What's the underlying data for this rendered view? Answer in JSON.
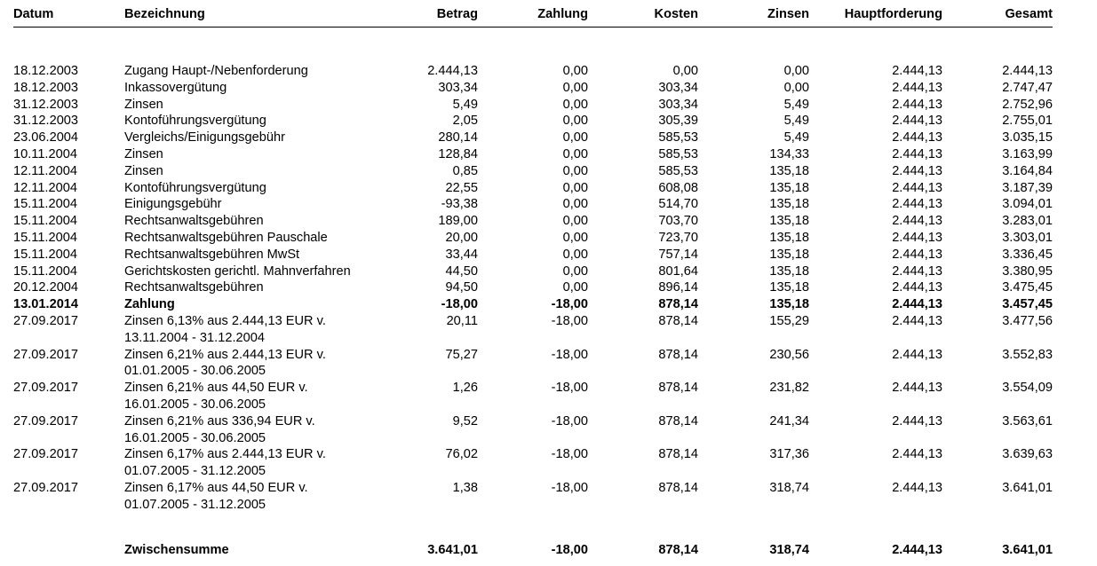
{
  "columns": {
    "datum": "Datum",
    "bezeichnung": "Bezeichnung",
    "betrag": "Betrag",
    "zahlung": "Zahlung",
    "kosten": "Kosten",
    "zinsen": "Zinsen",
    "hauptforderung": "Hauptforderung",
    "gesamt": "Gesamt"
  },
  "rows": [
    {
      "datum": "18.12.2003",
      "bezeichnung": [
        "Zugang Haupt-/Nebenforderung"
      ],
      "betrag": "2.444,13",
      "zahlung": "0,00",
      "kosten": "0,00",
      "zinsen": "0,00",
      "hauptforderung": "2.444,13",
      "gesamt": "2.444,13",
      "bold": false
    },
    {
      "datum": "18.12.2003",
      "bezeichnung": [
        "Inkassovergütung"
      ],
      "betrag": "303,34",
      "zahlung": "0,00",
      "kosten": "303,34",
      "zinsen": "0,00",
      "hauptforderung": "2.444,13",
      "gesamt": "2.747,47",
      "bold": false
    },
    {
      "datum": "31.12.2003",
      "bezeichnung": [
        "Zinsen"
      ],
      "betrag": "5,49",
      "zahlung": "0,00",
      "kosten": "303,34",
      "zinsen": "5,49",
      "hauptforderung": "2.444,13",
      "gesamt": "2.752,96",
      "bold": false
    },
    {
      "datum": "31.12.2003",
      "bezeichnung": [
        "Kontoführungsvergütung"
      ],
      "betrag": "2,05",
      "zahlung": "0,00",
      "kosten": "305,39",
      "zinsen": "5,49",
      "hauptforderung": "2.444,13",
      "gesamt": "2.755,01",
      "bold": false
    },
    {
      "datum": "23.06.2004",
      "bezeichnung": [
        "Vergleichs/Einigungsgebühr"
      ],
      "betrag": "280,14",
      "zahlung": "0,00",
      "kosten": "585,53",
      "zinsen": "5,49",
      "hauptforderung": "2.444,13",
      "gesamt": "3.035,15",
      "bold": false
    },
    {
      "datum": "10.11.2004",
      "bezeichnung": [
        "Zinsen"
      ],
      "betrag": "128,84",
      "zahlung": "0,00",
      "kosten": "585,53",
      "zinsen": "134,33",
      "hauptforderung": "2.444,13",
      "gesamt": "3.163,99",
      "bold": false
    },
    {
      "datum": "12.11.2004",
      "bezeichnung": [
        "Zinsen"
      ],
      "betrag": "0,85",
      "zahlung": "0,00",
      "kosten": "585,53",
      "zinsen": "135,18",
      "hauptforderung": "2.444,13",
      "gesamt": "3.164,84",
      "bold": false
    },
    {
      "datum": "12.11.2004",
      "bezeichnung": [
        "Kontoführungsvergütung"
      ],
      "betrag": "22,55",
      "zahlung": "0,00",
      "kosten": "608,08",
      "zinsen": "135,18",
      "hauptforderung": "2.444,13",
      "gesamt": "3.187,39",
      "bold": false
    },
    {
      "datum": "15.11.2004",
      "bezeichnung": [
        "Einigungsgebühr"
      ],
      "betrag": "-93,38",
      "zahlung": "0,00",
      "kosten": "514,70",
      "zinsen": "135,18",
      "hauptforderung": "2.444,13",
      "gesamt": "3.094,01",
      "bold": false
    },
    {
      "datum": "15.11.2004",
      "bezeichnung": [
        "Rechtsanwaltsgebühren"
      ],
      "betrag": "189,00",
      "zahlung": "0,00",
      "kosten": "703,70",
      "zinsen": "135,18",
      "hauptforderung": "2.444,13",
      "gesamt": "3.283,01",
      "bold": false
    },
    {
      "datum": "15.11.2004",
      "bezeichnung": [
        "Rechtsanwaltsgebühren Pauschale"
      ],
      "betrag": "20,00",
      "zahlung": "0,00",
      "kosten": "723,70",
      "zinsen": "135,18",
      "hauptforderung": "2.444,13",
      "gesamt": "3.303,01",
      "bold": false
    },
    {
      "datum": "15.11.2004",
      "bezeichnung": [
        "Rechtsanwaltsgebühren MwSt"
      ],
      "betrag": "33,44",
      "zahlung": "0,00",
      "kosten": "757,14",
      "zinsen": "135,18",
      "hauptforderung": "2.444,13",
      "gesamt": "3.336,45",
      "bold": false
    },
    {
      "datum": "15.11.2004",
      "bezeichnung": [
        "Gerichtskosten gerichtl. Mahnverfahren"
      ],
      "betrag": "44,50",
      "zahlung": "0,00",
      "kosten": "801,64",
      "zinsen": "135,18",
      "hauptforderung": "2.444,13",
      "gesamt": "3.380,95",
      "bold": false
    },
    {
      "datum": "20.12.2004",
      "bezeichnung": [
        "Rechtsanwaltsgebühren"
      ],
      "betrag": "94,50",
      "zahlung": "0,00",
      "kosten": "896,14",
      "zinsen": "135,18",
      "hauptforderung": "2.444,13",
      "gesamt": "3.475,45",
      "bold": false
    },
    {
      "datum": "13.01.2014",
      "bezeichnung": [
        "Zahlung"
      ],
      "betrag": "-18,00",
      "zahlung": "-18,00",
      "kosten": "878,14",
      "zinsen": "135,18",
      "hauptforderung": "2.444,13",
      "gesamt": "3.457,45",
      "bold": true
    },
    {
      "datum": "27.09.2017",
      "bezeichnung": [
        "Zinsen 6,13% aus 2.444,13 EUR v.",
        "13.11.2004 - 31.12.2004"
      ],
      "betrag": "20,11",
      "zahlung": "-18,00",
      "kosten": "878,14",
      "zinsen": "155,29",
      "hauptforderung": "2.444,13",
      "gesamt": "3.477,56",
      "bold": false
    },
    {
      "datum": "27.09.2017",
      "bezeichnung": [
        "Zinsen 6,21% aus 2.444,13 EUR v.",
        "01.01.2005 - 30.06.2005"
      ],
      "betrag": "75,27",
      "zahlung": "-18,00",
      "kosten": "878,14",
      "zinsen": "230,56",
      "hauptforderung": "2.444,13",
      "gesamt": "3.552,83",
      "bold": false
    },
    {
      "datum": "27.09.2017",
      "bezeichnung": [
        "Zinsen 6,21% aus 44,50 EUR v.",
        "16.01.2005 - 30.06.2005"
      ],
      "betrag": "1,26",
      "zahlung": "-18,00",
      "kosten": "878,14",
      "zinsen": "231,82",
      "hauptforderung": "2.444,13",
      "gesamt": "3.554,09",
      "bold": false
    },
    {
      "datum": "27.09.2017",
      "bezeichnung": [
        "Zinsen 6,21% aus 336,94 EUR v.",
        "16.01.2005 - 30.06.2005"
      ],
      "betrag": "9,52",
      "zahlung": "-18,00",
      "kosten": "878,14",
      "zinsen": "241,34",
      "hauptforderung": "2.444,13",
      "gesamt": "3.563,61",
      "bold": false
    },
    {
      "datum": "27.09.2017",
      "bezeichnung": [
        "Zinsen 6,17% aus 2.444,13 EUR v.",
        "01.07.2005 - 31.12.2005"
      ],
      "betrag": "76,02",
      "zahlung": "-18,00",
      "kosten": "878,14",
      "zinsen": "317,36",
      "hauptforderung": "2.444,13",
      "gesamt": "3.639,63",
      "bold": false
    },
    {
      "datum": "27.09.2017",
      "bezeichnung": [
        "Zinsen 6,17% aus 44,50 EUR v.",
        "01.07.2005 - 31.12.2005"
      ],
      "betrag": "1,38",
      "zahlung": "-18,00",
      "kosten": "878,14",
      "zinsen": "318,74",
      "hauptforderung": "2.444,13",
      "gesamt": "3.641,01",
      "bold": false
    }
  ],
  "summary": {
    "label": "Zwischensumme",
    "betrag": "3.641,01",
    "zahlung": "-18,00",
    "kosten": "878,14",
    "zinsen": "318,74",
    "hauptforderung": "2.444,13",
    "gesamt": "3.641,01"
  }
}
